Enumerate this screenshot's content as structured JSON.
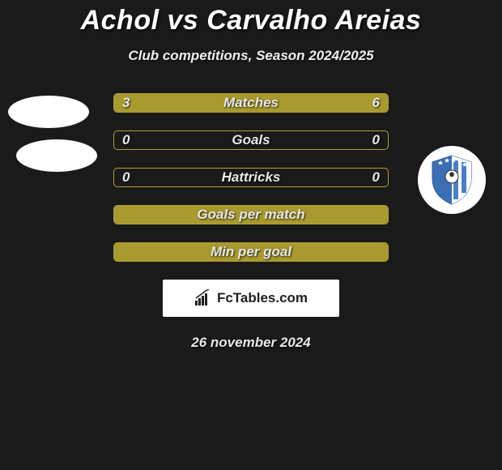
{
  "title": "Achol vs Carvalho Areias",
  "subtitle": "Club competitions, Season 2024/2025",
  "footer_brand": "FcTables.com",
  "date": "26 november 2024",
  "colors": {
    "bar_fill": "#a89a2e",
    "bar_border": "#b0a030",
    "background": "#1a1a1a",
    "logo_blue": "#3b6fb5",
    "logo_stripe": "#4a7fc5"
  },
  "stats": [
    {
      "label": "Matches",
      "left_val": "3",
      "right_val": "6",
      "left_pct": 33,
      "right_pct": 67,
      "show_vals": true
    },
    {
      "label": "Goals",
      "left_val": "0",
      "right_val": "0",
      "left_pct": 0,
      "right_pct": 0,
      "show_vals": true
    },
    {
      "label": "Hattricks",
      "left_val": "0",
      "right_val": "0",
      "left_pct": 0,
      "right_pct": 0,
      "show_vals": true
    },
    {
      "label": "Goals per match",
      "left_val": "",
      "right_val": "",
      "left_pct": 100,
      "right_pct": 0,
      "show_vals": false
    },
    {
      "label": "Min per goal",
      "left_val": "",
      "right_val": "",
      "left_pct": 100,
      "right_pct": 0,
      "show_vals": false
    }
  ]
}
